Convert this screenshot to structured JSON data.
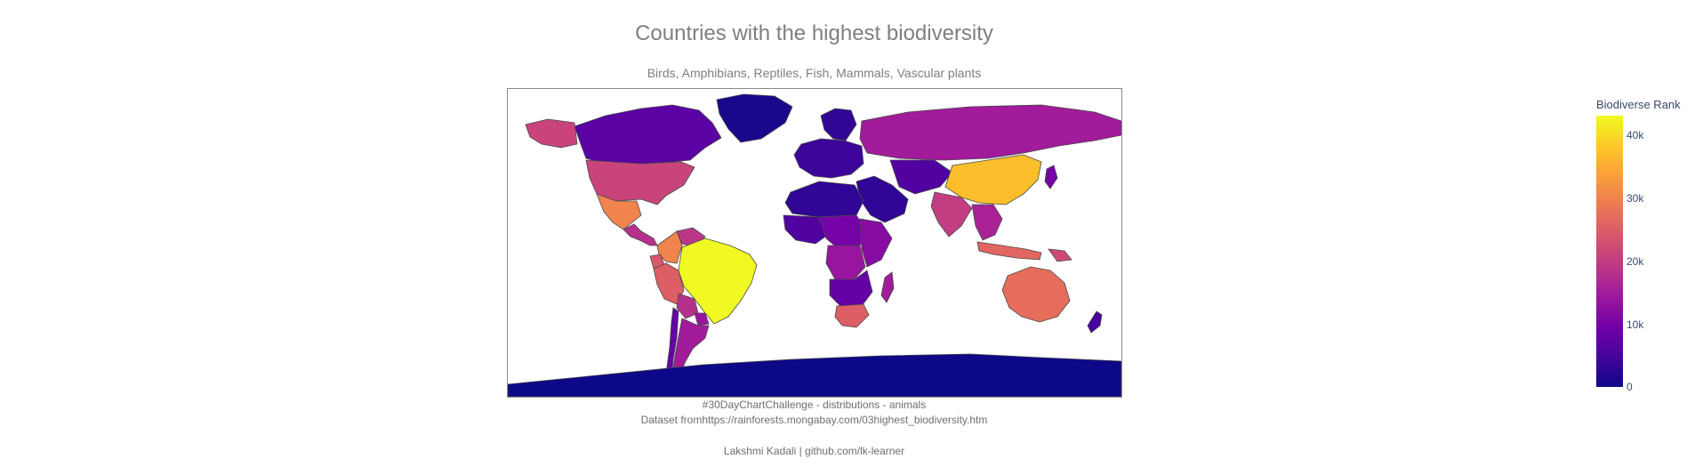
{
  "title": "Countries with the highest biodiversity",
  "subtitle": "Birds, Amphibians, Reptiles, Fish, Mammals, Vascular plants",
  "footer": {
    "line1": "#30DayChartChallenge - distributions - animals",
    "line2": "Dataset fromhttps://rainforests.mongabay.com/03highest_biodiversity.htm",
    "line3": "Lakshmi Kadali | github.com/lk-learner"
  },
  "colorbar": {
    "title": "Biodiverse Rank",
    "ticks": [
      "40k",
      "30k",
      "20k",
      "10k",
      "0"
    ],
    "colorscale": [
      "#0d0887",
      "#46039f",
      "#7201a8",
      "#9c179e",
      "#bd3786",
      "#d8576b",
      "#ed7953",
      "#fb9f3a",
      "#fdca26",
      "#f0f921"
    ],
    "range": [
      0,
      43000
    ]
  },
  "map": {
    "projection": "equirectangular",
    "background": "#ffffff",
    "border_color": "#4a4a4a",
    "regions": [
      {
        "id": "canada",
        "value": 7000
      },
      {
        "id": "greenland",
        "value": 1000
      },
      {
        "id": "alaska",
        "value": 21000
      },
      {
        "id": "usa",
        "value": 21000
      },
      {
        "id": "mexico",
        "value": 30000
      },
      {
        "id": "central-america",
        "value": 18000
      },
      {
        "id": "colombia",
        "value": 30000
      },
      {
        "id": "venezuela",
        "value": 19000
      },
      {
        "id": "ecuador",
        "value": 24000
      },
      {
        "id": "peru",
        "value": 25000
      },
      {
        "id": "brazil",
        "value": 43000
      },
      {
        "id": "bolivia",
        "value": 18000
      },
      {
        "id": "paraguay",
        "value": 14000
      },
      {
        "id": "argentina",
        "value": 15000
      },
      {
        "id": "chile",
        "value": 8000
      },
      {
        "id": "russia",
        "value": 15000
      },
      {
        "id": "europe",
        "value": 4000
      },
      {
        "id": "scandinavia",
        "value": 3000
      },
      {
        "id": "north-africa",
        "value": 3000
      },
      {
        "id": "west-africa",
        "value": 6000
      },
      {
        "id": "central-africa",
        "value": 10000
      },
      {
        "id": "drc",
        "value": 14000
      },
      {
        "id": "east-africa",
        "value": 12000
      },
      {
        "id": "southern-africa",
        "value": 8000
      },
      {
        "id": "south-africa",
        "value": 25000
      },
      {
        "id": "madagascar",
        "value": 15000
      },
      {
        "id": "middle-east",
        "value": 3000
      },
      {
        "id": "central-asia",
        "value": 6000
      },
      {
        "id": "china",
        "value": 37000
      },
      {
        "id": "india",
        "value": 20000
      },
      {
        "id": "southeast-asia",
        "value": 16000
      },
      {
        "id": "indonesia",
        "value": 26000
      },
      {
        "id": "png",
        "value": 22000
      },
      {
        "id": "australia",
        "value": 27000
      },
      {
        "id": "japan",
        "value": 10000
      },
      {
        "id": "new-zealand",
        "value": 5000
      },
      {
        "id": "antarctica",
        "value": 0
      }
    ]
  }
}
